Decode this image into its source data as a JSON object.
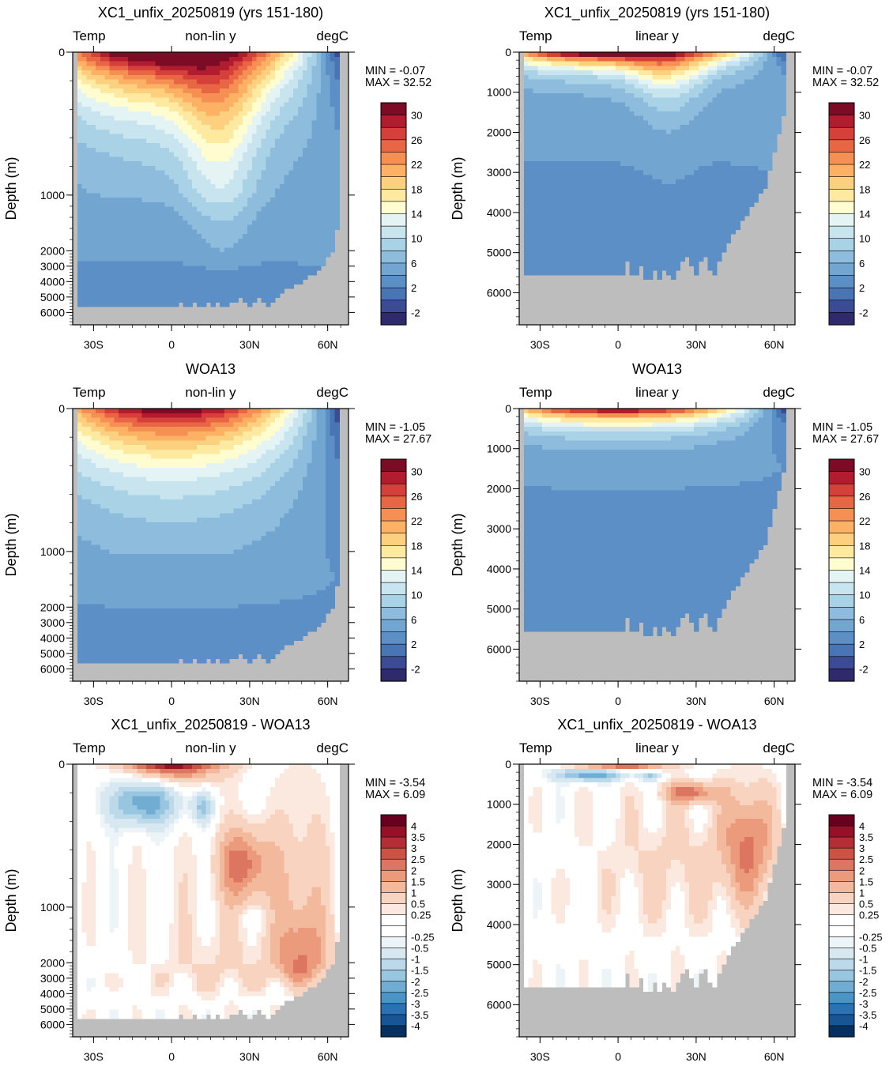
{
  "colors": {
    "land": "#bdbdbd",
    "temp_scale": [
      "#2f2a6b",
      "#3b4b94",
      "#4a75b4",
      "#5b8fc5",
      "#72a6d1",
      "#8dbcdc",
      "#aad2e6",
      "#c7e4ef",
      "#e4f3f3",
      "#fffccf",
      "#fde9a0",
      "#fdd080",
      "#fcb164",
      "#f68f54",
      "#e96645",
      "#d6403a",
      "#b11d2e",
      "#7c0b26"
    ],
    "diff_scale": [
      "#053061",
      "#175595",
      "#2b72b5",
      "#4a94c6",
      "#71acd3",
      "#98c6e0",
      "#bcd9ea",
      "#d8e8f1",
      "#edf4f8",
      "#ffffff",
      "#ffffff",
      "#fbe9e0",
      "#f8d4c0",
      "#f3b99d",
      "#eb9a7c",
      "#dd7660",
      "#cc5246",
      "#b52e35",
      "#951127",
      "#67001f"
    ]
  },
  "chart_data": [
    {
      "type": "heatmap",
      "panel": "model-nonlin",
      "title": "XC1_unfix_20250819 (yrs 151-180)",
      "left_string": "Temp",
      "center_string": "non-lin y",
      "right_string": "degC",
      "ylabel": "Depth (m)",
      "yscale": "non-linear",
      "ytick_labels": [
        "0",
        "1000",
        "2000",
        "3000",
        "4000",
        "5000",
        "6000"
      ],
      "ytick_values": [
        0,
        1000,
        2000,
        3000,
        4000,
        5000,
        6000
      ],
      "xtick_labels": [
        "30S",
        "0",
        "30N",
        "60N"
      ],
      "xtick_values": [
        -30,
        0,
        30,
        60
      ],
      "xlim": [
        -38,
        68
      ],
      "ylim": [
        0,
        6800
      ],
      "min_label": "MIN =  -0.07",
      "max_label": "MAX =  32.52",
      "colorbar_labels": [
        "30",
        "26",
        "22",
        "18",
        "14",
        "10",
        "6",
        "2",
        "-2"
      ],
      "colorbar_levels": [
        -4,
        -2,
        0,
        2,
        4,
        6,
        8,
        10,
        12,
        14,
        16,
        18,
        20,
        22,
        24,
        26,
        28,
        30
      ],
      "field": "model",
      "scale": "temp"
    },
    {
      "type": "heatmap",
      "panel": "model-lin",
      "title": "XC1_unfix_20250819 (yrs 151-180)",
      "left_string": "Temp",
      "center_string": "linear y",
      "right_string": "degC",
      "ylabel": "Depth (m)",
      "yscale": "linear",
      "ytick_labels": [
        "0",
        "1000",
        "2000",
        "3000",
        "4000",
        "5000",
        "6000"
      ],
      "ytick_values": [
        0,
        1000,
        2000,
        3000,
        4000,
        5000,
        6000
      ],
      "xtick_labels": [
        "30S",
        "0",
        "30N",
        "60N"
      ],
      "xtick_values": [
        -30,
        0,
        30,
        60
      ],
      "xlim": [
        -38,
        68
      ],
      "ylim": [
        0,
        6800
      ],
      "min_label": "MIN =  -0.07",
      "max_label": "MAX =  32.52",
      "colorbar_labels": [
        "30",
        "26",
        "22",
        "18",
        "14",
        "10",
        "6",
        "2",
        "-2"
      ],
      "colorbar_levels": [
        -4,
        -2,
        0,
        2,
        4,
        6,
        8,
        10,
        12,
        14,
        16,
        18,
        20,
        22,
        24,
        26,
        28,
        30
      ],
      "field": "model",
      "scale": "temp"
    },
    {
      "type": "heatmap",
      "panel": "obs-nonlin",
      "title": "WOA13",
      "left_string": "Temp",
      "center_string": "non-lin y",
      "right_string": "degC",
      "ylabel": "Depth (m)",
      "yscale": "non-linear",
      "ytick_labels": [
        "0",
        "1000",
        "2000",
        "3000",
        "4000",
        "5000",
        "6000"
      ],
      "ytick_values": [
        0,
        1000,
        2000,
        3000,
        4000,
        5000,
        6000
      ],
      "xtick_labels": [
        "30S",
        "0",
        "30N",
        "60N"
      ],
      "xtick_values": [
        -30,
        0,
        30,
        60
      ],
      "xlim": [
        -38,
        68
      ],
      "ylim": [
        0,
        6800
      ],
      "min_label": "MIN =  -1.05",
      "max_label": "MAX =  27.67",
      "colorbar_labels": [
        "30",
        "26",
        "22",
        "18",
        "14",
        "10",
        "6",
        "2",
        "-2"
      ],
      "colorbar_levels": [
        -4,
        -2,
        0,
        2,
        4,
        6,
        8,
        10,
        12,
        14,
        16,
        18,
        20,
        22,
        24,
        26,
        28,
        30
      ],
      "field": "obs",
      "scale": "temp"
    },
    {
      "type": "heatmap",
      "panel": "obs-lin",
      "title": "WOA13",
      "left_string": "Temp",
      "center_string": "linear y",
      "right_string": "degC",
      "ylabel": "Depth (m)",
      "yscale": "linear",
      "ytick_labels": [
        "0",
        "1000",
        "2000",
        "3000",
        "4000",
        "5000",
        "6000"
      ],
      "ytick_values": [
        0,
        1000,
        2000,
        3000,
        4000,
        5000,
        6000
      ],
      "xtick_labels": [
        "30S",
        "0",
        "30N",
        "60N"
      ],
      "xtick_values": [
        -30,
        0,
        30,
        60
      ],
      "xlim": [
        -38,
        68
      ],
      "ylim": [
        0,
        6800
      ],
      "min_label": "MIN =  -1.05",
      "max_label": "MAX =  27.67",
      "colorbar_labels": [
        "30",
        "26",
        "22",
        "18",
        "14",
        "10",
        "6",
        "2",
        "-2"
      ],
      "colorbar_levels": [
        -4,
        -2,
        0,
        2,
        4,
        6,
        8,
        10,
        12,
        14,
        16,
        18,
        20,
        22,
        24,
        26,
        28,
        30
      ],
      "field": "obs",
      "scale": "temp"
    },
    {
      "type": "heatmap",
      "panel": "diff-nonlin",
      "title": "XC1_unfix_20250819 - WOA13",
      "left_string": "Temp",
      "center_string": "non-lin y",
      "right_string": "degC",
      "ylabel": "Depth (m)",
      "yscale": "non-linear",
      "ytick_labels": [
        "0",
        "1000",
        "2000",
        "3000",
        "4000",
        "5000",
        "6000"
      ],
      "ytick_values": [
        0,
        1000,
        2000,
        3000,
        4000,
        5000,
        6000
      ],
      "xtick_labels": [
        "30S",
        "0",
        "30N",
        "60N"
      ],
      "xtick_values": [
        -30,
        0,
        30,
        60
      ],
      "xlim": [
        -38,
        68
      ],
      "ylim": [
        0,
        6800
      ],
      "min_label": "MIN =  -3.54",
      "max_label": "MAX =   6.09",
      "colorbar_labels": [
        "4",
        "3.5",
        "3",
        "2.5",
        "2",
        "1.5",
        "1",
        "0.5",
        "0.25",
        "-0.25",
        "-0.5",
        "-1",
        "-1.5",
        "-2",
        "-2.5",
        "-3",
        "-3.5",
        "-4"
      ],
      "colorbar_levels": [
        -4,
        -3.5,
        -3,
        -2.5,
        -2,
        -1.5,
        -1,
        -0.5,
        -0.25,
        0,
        0.25,
        0.5,
        1,
        1.5,
        2,
        2.5,
        3,
        3.5,
        4
      ],
      "field": "diff",
      "scale": "diff"
    },
    {
      "type": "heatmap",
      "panel": "diff-lin",
      "title": "XC1_unfix_20250819 - WOA13",
      "left_string": "Temp",
      "center_string": "linear y",
      "right_string": "degC",
      "ylabel": "Depth (m)",
      "yscale": "linear",
      "ytick_labels": [
        "0",
        "1000",
        "2000",
        "3000",
        "4000",
        "5000",
        "6000"
      ],
      "ytick_values": [
        0,
        1000,
        2000,
        3000,
        4000,
        5000,
        6000
      ],
      "xtick_labels": [
        "30S",
        "0",
        "30N",
        "60N"
      ],
      "xtick_values": [
        -30,
        0,
        30,
        60
      ],
      "xlim": [
        -38,
        68
      ],
      "ylim": [
        0,
        6800
      ],
      "min_label": "MIN =  -3.54",
      "max_label": "MAX =   6.09",
      "colorbar_labels": [
        "4",
        "3.5",
        "3",
        "2.5",
        "2",
        "1.5",
        "1",
        "0.5",
        "0.25",
        "-0.25",
        "-0.5",
        "-1",
        "-1.5",
        "-2",
        "-2.5",
        "-3",
        "-3.5",
        "-4"
      ],
      "colorbar_levels": [
        -4,
        -3.5,
        -3,
        -2.5,
        -2,
        -1.5,
        -1,
        -0.5,
        -0.25,
        0,
        0.25,
        0.5,
        1,
        1.5,
        2,
        2.5,
        3,
        3.5,
        4
      ],
      "field": "diff",
      "scale": "diff"
    }
  ]
}
